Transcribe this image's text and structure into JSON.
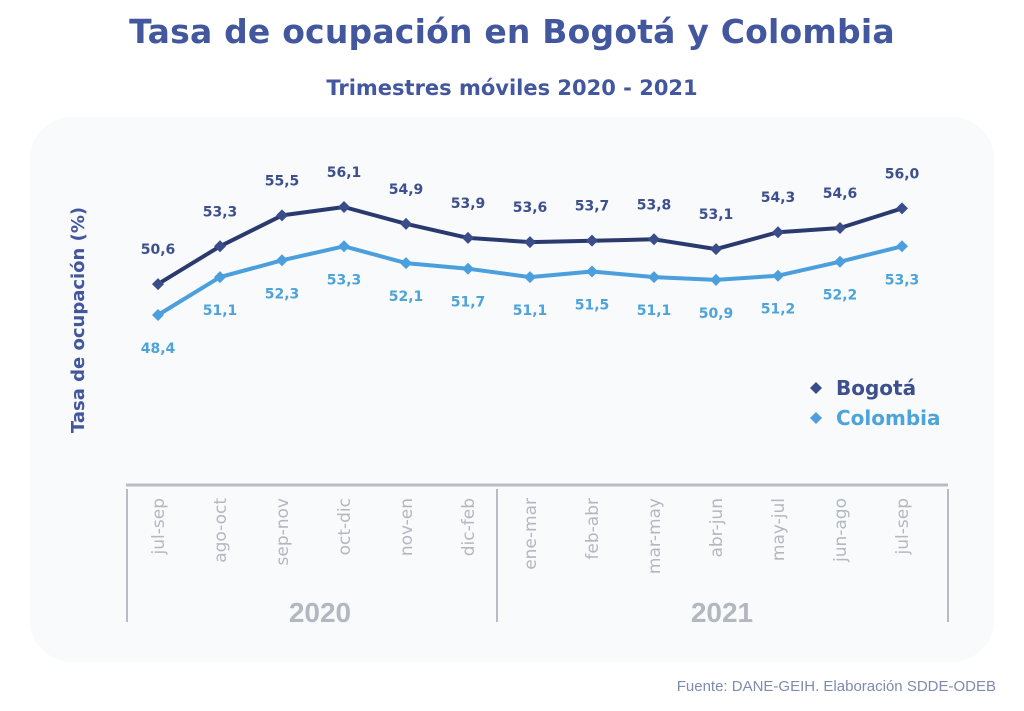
{
  "title": "Tasa de ocupación en Bogotá y Colombia",
  "subtitle": "Trimestres móviles 2020 - 2021",
  "source": "Fuente: DANE-GEIH. Elaboración SDDE-ODEB",
  "colors": {
    "title": "#42579e",
    "bogota": "#2b3a6e",
    "bogota_label": "#3d4f8c",
    "colombia": "#4a9fdc",
    "colombia_label": "#4ea3d9",
    "axis": "#b7bcc4",
    "tick_text": "#b3b8c0"
  },
  "chart_data": {
    "type": "line",
    "title": "Tasa de ocupación en Bogotá y Colombia",
    "subtitle": "Trimestres móviles 2020 - 2021",
    "xlabel": "",
    "ylabel": "Tasa de ocupación  (%)",
    "categories": [
      "jul-sep",
      "ago-oct",
      "sep-nov",
      "oct-dic",
      "nov-en",
      "dic-feb",
      "ene-mar",
      "feb-abr",
      "mar-may",
      "abr-jun",
      "may-jul",
      "jun-ago",
      "jul-sep"
    ],
    "groups": [
      {
        "label": "2020",
        "start": 0,
        "end": 5
      },
      {
        "label": "2021",
        "start": 6,
        "end": 12
      }
    ],
    "series": [
      {
        "name": "Bogotá",
        "values": [
          50.6,
          53.3,
          55.5,
          56.1,
          54.9,
          53.9,
          53.6,
          53.7,
          53.8,
          53.1,
          54.3,
          54.6,
          56.0
        ],
        "labels": [
          "50,6",
          "53,3",
          "55,5",
          "56,1",
          "54,9",
          "53,9",
          "53,6",
          "53,7",
          "53,8",
          "53,1",
          "54,3",
          "54,6",
          "56,0"
        ],
        "marker": "diamond",
        "label_position": "above"
      },
      {
        "name": "Colombia",
        "values": [
          48.4,
          51.1,
          52.3,
          53.3,
          52.1,
          51.7,
          51.1,
          51.5,
          51.1,
          50.9,
          51.2,
          52.2,
          53.3
        ],
        "labels": [
          "48,4",
          "51,1",
          "52,3",
          "53,3",
          "52,1",
          "51,7",
          "51,1",
          "51,5",
          "51,1",
          "50,9",
          "51,2",
          "52,2",
          "53,3"
        ],
        "marker": "diamond",
        "label_position": "below"
      }
    ],
    "ylim": [
      44,
      58
    ],
    "grid": false,
    "legend": {
      "placement": "right",
      "entries": [
        "Bogotá",
        "Colombia"
      ]
    }
  }
}
